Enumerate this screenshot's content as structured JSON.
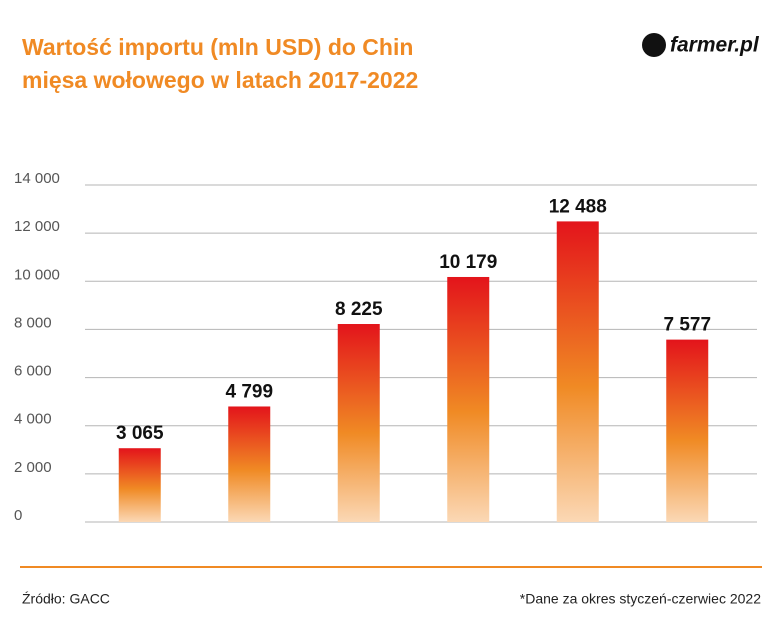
{
  "chart_data": {
    "type": "bar",
    "title": [
      "Wartość importu (mln USD) do Chin",
      "mięsa wołowego w latach 2017-2022"
    ],
    "logo": "farmer.pl",
    "values": [
      3065,
      4799,
      8225,
      10179,
      12488,
      7577
    ],
    "value_labels": [
      "3 065",
      "4 799",
      "8 225",
      "10 179",
      "12 488",
      "7 577"
    ],
    "colors": [
      "#e3141b",
      "#f08a24",
      "#fbd8b5"
    ],
    "ylim": [
      0,
      14000
    ],
    "yticks": [
      0,
      {
        "value": 2000,
        "label": "2 000"
      },
      {
        "value": 4000,
        "label": "4 000"
      },
      {
        "value": 6000,
        "label": "6 000"
      },
      {
        "value": 8000,
        "label": "8 000"
      },
      {
        "value": 10000,
        "label": "10 000"
      },
      {
        "value": 12000,
        "label": "12 000"
      },
      {
        "value": 14000,
        "label": "14 000"
      }
    ],
    "grid": true,
    "source": "Źródło: GACC",
    "note": "*Dane za okres styczeń-czerwiec 2022"
  }
}
